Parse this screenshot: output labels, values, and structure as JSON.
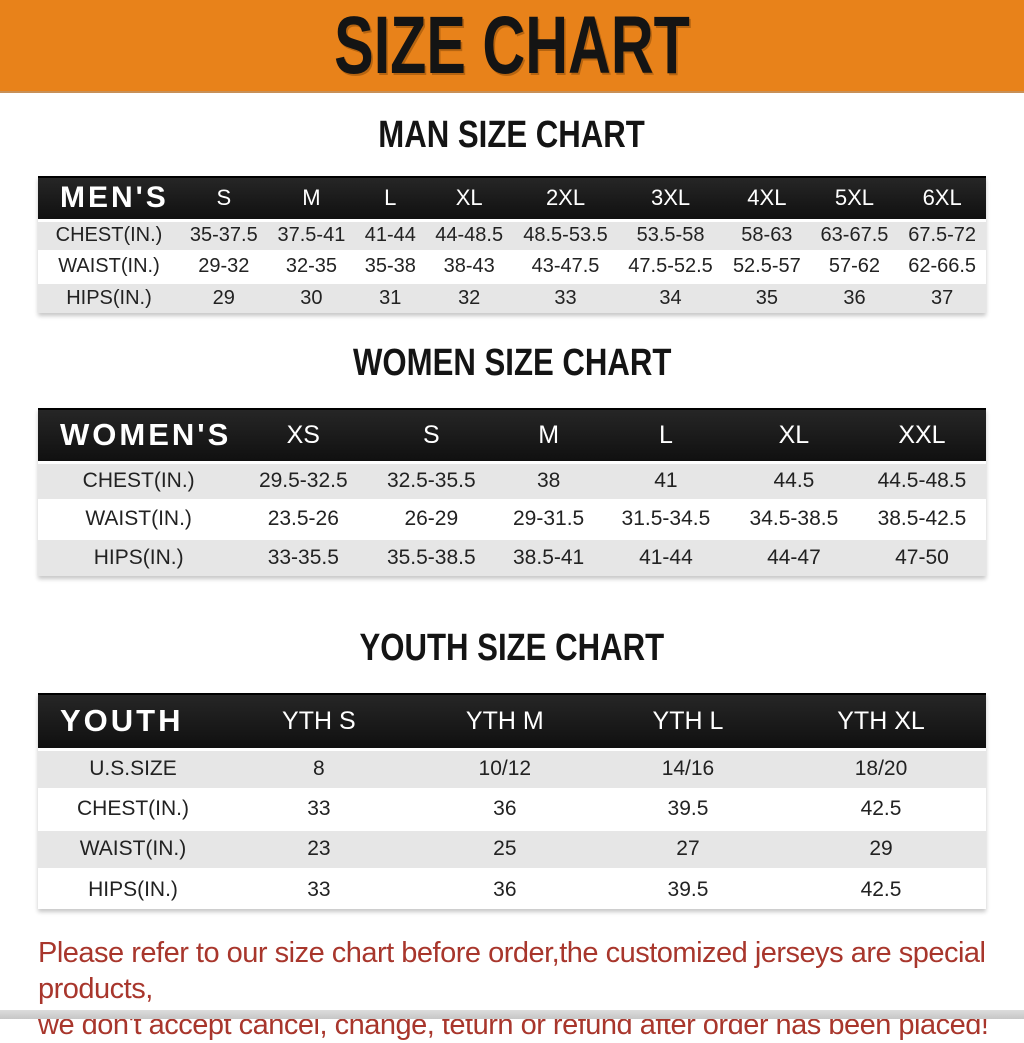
{
  "banner": {
    "title": "SIZE CHART",
    "bg_color": "#E8821A"
  },
  "tables": {
    "men": {
      "title": "MAN SIZE CHART",
      "header": [
        "MEN'S",
        "S",
        "M",
        "L",
        "XL",
        "2XL",
        "3XL",
        "4XL",
        "5XL",
        "6XL"
      ],
      "rows": [
        [
          "CHEST(IN.)",
          "35-37.5",
          "37.5-41",
          "41-44",
          "44-48.5",
          "48.5-53.5",
          "53.5-58",
          "58-63",
          "63-67.5",
          "67.5-72"
        ],
        [
          "WAIST(IN.)",
          "29-32",
          "32-35",
          "35-38",
          "38-43",
          "43-47.5",
          "47.5-52.5",
          "52.5-57",
          "57-62",
          "62-66.5"
        ],
        [
          "HIPS(IN.)",
          "29",
          "30",
          "31",
          "32",
          "33",
          "34",
          "35",
          "36",
          "37"
        ]
      ]
    },
    "women": {
      "title": "WOMEN SIZE CHART",
      "header": [
        "WOMEN'S",
        "XS",
        "S",
        "M",
        "L",
        "XL",
        "XXL"
      ],
      "rows": [
        [
          "CHEST(IN.)",
          "29.5-32.5",
          "32.5-35.5",
          "38",
          "41",
          "44.5",
          "44.5-48.5"
        ],
        [
          "WAIST(IN.)",
          "23.5-26",
          "26-29",
          "29-31.5",
          "31.5-34.5",
          "34.5-38.5",
          "38.5-42.5"
        ],
        [
          "HIPS(IN.)",
          "33-35.5",
          "35.5-38.5",
          "38.5-41",
          "41-44",
          "44-47",
          "47-50"
        ]
      ]
    },
    "youth": {
      "title": "YOUTH SIZE CHART",
      "header": [
        "YOUTH",
        "YTH S",
        "YTH M",
        "YTH L",
        "YTH XL"
      ],
      "rows": [
        [
          "U.S.SIZE",
          "8",
          "10/12",
          "14/16",
          "18/20"
        ],
        [
          "CHEST(IN.)",
          "33",
          "36",
          "39.5",
          "42.5"
        ],
        [
          "WAIST(IN.)",
          "23",
          "25",
          "27",
          "29"
        ],
        [
          "HIPS(IN.)",
          "33",
          "36",
          "39.5",
          "42.5"
        ]
      ]
    }
  },
  "disclaimer": {
    "line1": "Please refer to our size chart before order,the customized jerseys are special products,",
    "line2": "we don't accept cancel, change, teturn or refund after order has been placed!"
  },
  "colors": {
    "banner_bg": "#E8821A",
    "header_bar": "#1A1A1A",
    "row_alt": "#E6E6E6",
    "disclaimer_text": "#A8362C"
  }
}
